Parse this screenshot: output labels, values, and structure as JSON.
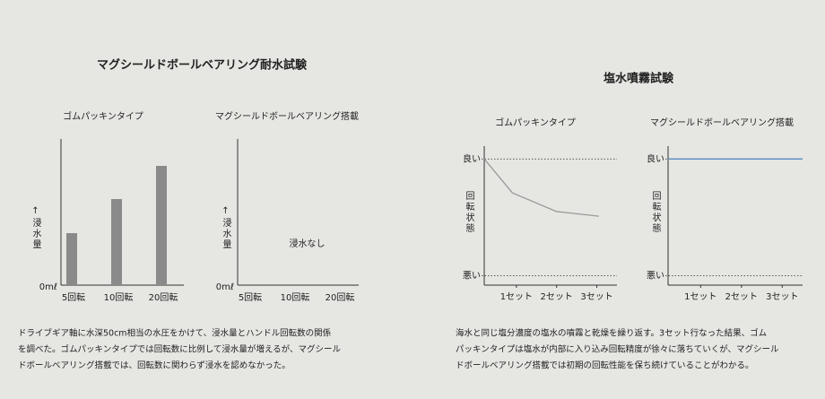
{
  "sections": [
    {
      "title": "マグシールドボールベアリング耐水試験",
      "caption_lines": [
        "ドライブギア軸に水深50cm相当の水圧をかけて、浸水量とハンドル回転数の関係",
        "を調べた。ゴムパッキンタイプでは回転数に比例して浸水量が増えるが、マグシール",
        "ドボールベアリング搭載では、回転数に関わらず浸水を認めなかった。"
      ]
    },
    {
      "title": "塩水噴霧試験",
      "caption_lines": [
        "海水と同じ塩分濃度の塩水の噴霧と乾燥を繰り返す。3セット行なった結果、ゴム",
        "パッキンタイプは塩水が内部に入り込み回転精度が徐々に落ちていくが、マグシール",
        "ドボールベアリング搭載では初期の回転性能を保ち続けていることがわかる。"
      ]
    }
  ],
  "chart_data": [
    {
      "type": "bar",
      "title": "ゴムパッキンタイプ",
      "y_label": "↑浸水量",
      "categories": [
        "5回転",
        "10回転",
        "20回転"
      ],
      "values": [
        58,
        96,
        133
      ],
      "color": "#8a8a8a",
      "ylim": [
        0,
        163
      ],
      "yticks": [
        {
          "value": 0,
          "label": "0mℓ"
        }
      ]
    },
    {
      "type": "bar",
      "title": "マグシールドボールベアリング搭載",
      "y_label": "↑浸水量",
      "categories": [
        "5回転",
        "10回転",
        "20回転"
      ],
      "values": [
        0,
        0,
        0
      ],
      "color": "#8a8a8a",
      "ylim": [
        0,
        163
      ],
      "yticks": [
        {
          "value": 0,
          "label": "0mℓ"
        }
      ],
      "annotation": "浸水なし"
    },
    {
      "type": "line",
      "title": "ゴムパッキンタイプ",
      "y_label": "回転状態",
      "x": [
        0.2,
        0.9,
        2,
        3.05
      ],
      "series": [
        {
          "color": "#9a9a9a",
          "values": [
            100,
            71,
            55,
            51
          ]
        }
      ],
      "xlim": [
        0.2,
        3.5
      ],
      "xticks": [
        {
          "value": 1,
          "label": "1セット"
        },
        {
          "value": 2,
          "label": "2セット"
        },
        {
          "value": 3,
          "label": "3セット"
        }
      ],
      "ylim": [
        -8,
        111
      ],
      "yticks": [
        {
          "value": 100,
          "label": "良い"
        },
        {
          "value": 0,
          "label": "悪い"
        }
      ],
      "grid": true
    },
    {
      "type": "line",
      "title": "マグシールドボールベアリング搭載",
      "y_label": "回転状態",
      "x": [
        0.2,
        3.5
      ],
      "series": [
        {
          "color": "#5b8bc0",
          "values": [
            100,
            100
          ]
        }
      ],
      "xlim": [
        0.2,
        3.5
      ],
      "xticks": [
        {
          "value": 1,
          "label": "1セット"
        },
        {
          "value": 2,
          "label": "2セット"
        },
        {
          "value": 3,
          "label": "3セット"
        }
      ],
      "ylim": [
        -8,
        111
      ],
      "yticks": [
        {
          "value": 100,
          "label": "良い"
        },
        {
          "value": 0,
          "label": "悪い"
        }
      ],
      "grid": true
    }
  ]
}
